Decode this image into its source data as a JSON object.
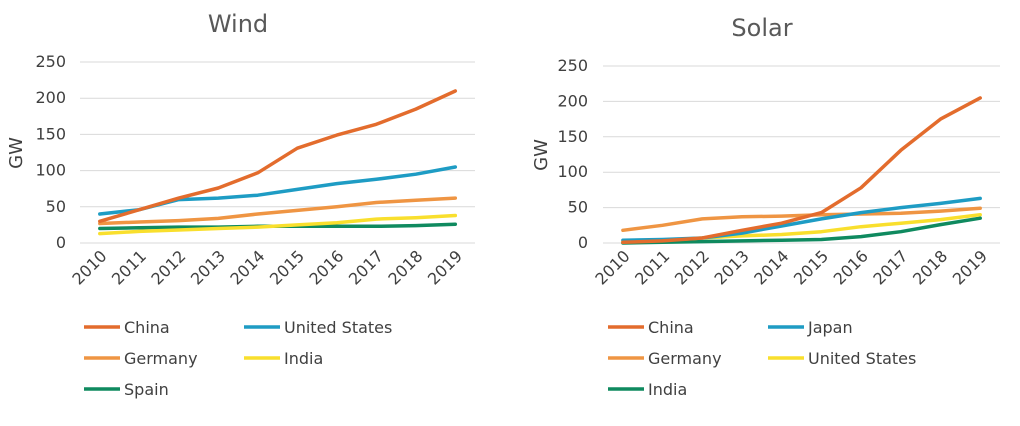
{
  "chart_data": [
    {
      "type": "line",
      "title": "Wind",
      "ylabel": "GW",
      "xlabel": "",
      "ylim": [
        0,
        250
      ],
      "yticks": [
        0,
        50,
        100,
        150,
        200,
        250
      ],
      "categories": [
        "2010",
        "2011",
        "2012",
        "2013",
        "2014",
        "2015",
        "2016",
        "2017",
        "2018",
        "2019"
      ],
      "grid": true,
      "legend": "bottom",
      "series": [
        {
          "name": "China",
          "color": "#E36C2D",
          "values": [
            30,
            46,
            62,
            76,
            97,
            131,
            149,
            164,
            185,
            210
          ]
        },
        {
          "name": "United States",
          "color": "#1E9CC4",
          "values": [
            40,
            46,
            60,
            62,
            66,
            74,
            82,
            88,
            95,
            105
          ]
        },
        {
          "name": "Germany",
          "color": "#EF9543",
          "values": [
            27,
            29,
            31,
            34,
            40,
            45,
            50,
            56,
            59,
            62
          ]
        },
        {
          "name": "India",
          "color": "#F9DF2D",
          "values": [
            13,
            16,
            18,
            20,
            22,
            25,
            28,
            33,
            35,
            38
          ]
        },
        {
          "name": "Spain",
          "color": "#0F8A5F",
          "values": [
            20,
            21,
            22,
            22,
            23,
            23,
            23,
            23,
            24,
            26
          ]
        }
      ]
    },
    {
      "type": "line",
      "title": "Solar",
      "ylabel": "GW",
      "xlabel": "",
      "ylim": [
        0,
        250
      ],
      "yticks": [
        0,
        50,
        100,
        150,
        200,
        250
      ],
      "categories": [
        "2010",
        "2011",
        "2012",
        "2013",
        "2014",
        "2015",
        "2016",
        "2017",
        "2018",
        "2019"
      ],
      "grid": true,
      "legend": "bottom",
      "series": [
        {
          "name": "China",
          "color": "#E36C2D",
          "values": [
            1,
            3,
            7,
            18,
            28,
            43,
            78,
            131,
            175,
            205
          ]
        },
        {
          "name": "Japan",
          "color": "#1E9CC4",
          "values": [
            4,
            5,
            7,
            14,
            24,
            34,
            43,
            50,
            56,
            63
          ]
        },
        {
          "name": "Germany",
          "color": "#EF9543",
          "values": [
            18,
            25,
            34,
            37,
            38,
            40,
            41,
            42,
            45,
            49
          ]
        },
        {
          "name": "United States",
          "color": "#F9DF2D",
          "values": [
            2,
            4,
            7,
            10,
            12,
            16,
            23,
            28,
            33,
            40
          ]
        },
        {
          "name": "India",
          "color": "#0F8A5F",
          "values": [
            0,
            1,
            2,
            3,
            4,
            5,
            9,
            16,
            26,
            35
          ]
        }
      ]
    }
  ]
}
